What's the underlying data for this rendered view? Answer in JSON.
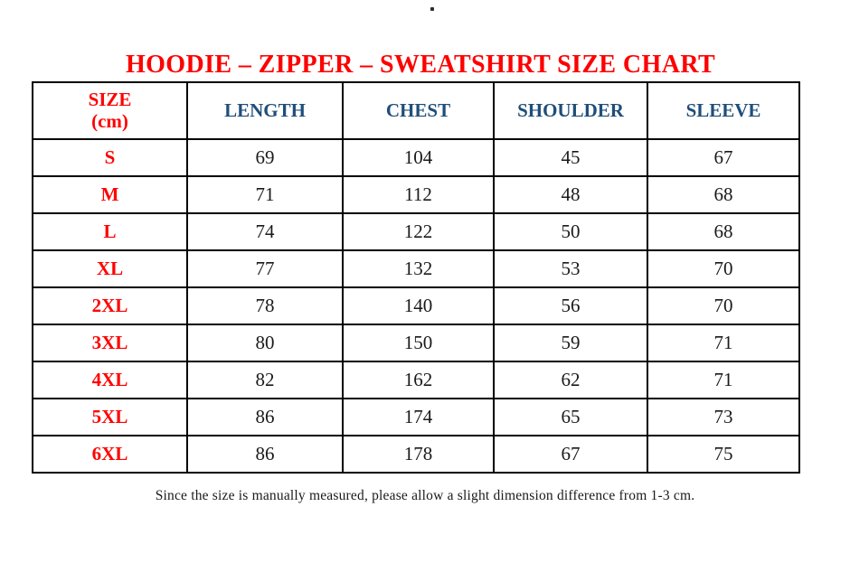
{
  "stray_dot": ".",
  "title": "HOODIE – ZIPPER – SWEATSHIRT SIZE CHART",
  "table": {
    "header": {
      "size_line1": "SIZE",
      "size_line2": "(cm)",
      "length": "LENGTH",
      "chest": "CHEST",
      "shoulder": "SHOULDER",
      "sleeve": "SLEEVE"
    },
    "rows": [
      {
        "size": "S",
        "length": "69",
        "chest": "104",
        "shoulder": "45",
        "sleeve": "67"
      },
      {
        "size": "M",
        "length": "71",
        "chest": "112",
        "shoulder": "48",
        "sleeve": "68"
      },
      {
        "size": "L",
        "length": "74",
        "chest": "122",
        "shoulder": "50",
        "sleeve": "68"
      },
      {
        "size": "XL",
        "length": "77",
        "chest": "132",
        "shoulder": "53",
        "sleeve": "70"
      },
      {
        "size": "2XL",
        "length": "78",
        "chest": "140",
        "shoulder": "56",
        "sleeve": "70"
      },
      {
        "size": "3XL",
        "length": "80",
        "chest": "150",
        "shoulder": "59",
        "sleeve": "71"
      },
      {
        "size": "4XL",
        "length": "82",
        "chest": "162",
        "shoulder": "62",
        "sleeve": "71"
      },
      {
        "size": "5XL",
        "length": "86",
        "chest": "174",
        "shoulder": "65",
        "sleeve": "73"
      },
      {
        "size": "6XL",
        "length": "86",
        "chest": "178",
        "shoulder": "67",
        "sleeve": "75"
      }
    ]
  },
  "footnote": "Since the size is manually measured, please allow a slight dimension difference from 1-3 cm.",
  "colors": {
    "title_red": "#FF0000",
    "size_red": "#FF0000",
    "header_blue": "#1F4E79",
    "value_black": "#1A1A1A",
    "border_black": "#000000"
  }
}
